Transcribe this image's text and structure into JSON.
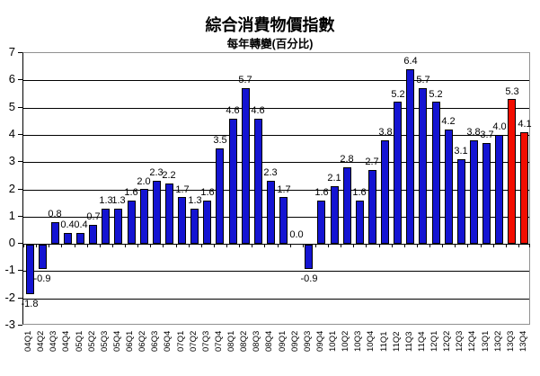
{
  "chart_data": {
    "type": "bar",
    "title": "綜合消費物價指數",
    "subtitle": "每年轉變(百分比)",
    "categories": [
      "04Q1",
      "04Q2",
      "04Q3",
      "04Q4",
      "05Q1",
      "05Q2",
      "05Q3",
      "05Q4",
      "06Q1",
      "06Q2",
      "06Q3",
      "06Q4",
      "07Q1",
      "07Q2",
      "07Q3",
      "07Q4",
      "08Q1",
      "08Q2",
      "08Q3",
      "08Q4",
      "09Q1",
      "09Q2",
      "09Q3",
      "09Q4",
      "10Q1",
      "10Q2",
      "10Q3",
      "10Q4",
      "11Q1",
      "11Q2",
      "11Q3",
      "11Q4",
      "12Q1",
      "12Q2",
      "12Q3",
      "12Q4",
      "13Q1",
      "13Q2",
      "13Q3",
      "13Q4"
    ],
    "values": [
      -1.8,
      -0.9,
      0.8,
      0.4,
      0.4,
      0.7,
      1.3,
      1.3,
      1.6,
      2.0,
      2.3,
      2.2,
      1.7,
      1.3,
      1.6,
      3.5,
      4.6,
      5.7,
      4.6,
      2.3,
      1.7,
      0.0,
      -0.9,
      1.6,
      2.1,
      2.8,
      1.6,
      2.7,
      3.8,
      5.2,
      6.4,
      5.7,
      5.2,
      4.2,
      3.1,
      3.8,
      3.7,
      4.0,
      5.3,
      4.1
    ],
    "highlight_indices": [
      38,
      39
    ],
    "ytick_labels": [
      "7",
      "6",
      "5",
      "4",
      "3",
      "2",
      "1",
      "0",
      "-1",
      "-2",
      "-3"
    ],
    "ylim": [
      -3,
      7
    ],
    "ytick_step": 1,
    "xlabel": "",
    "ylabel": "",
    "grid": true,
    "legend": "none",
    "data_labels_format": "one-decimal",
    "x_label_rotation_deg": -90,
    "colors": {
      "bar_default": "#1414D2",
      "bar_highlight": "#F20D00",
      "bar_border": "#000000",
      "gridline": "#000000",
      "axis_line": "#000000",
      "plot_border": "#909090",
      "text": "#000000",
      "background": "#FFFFFF"
    }
  }
}
